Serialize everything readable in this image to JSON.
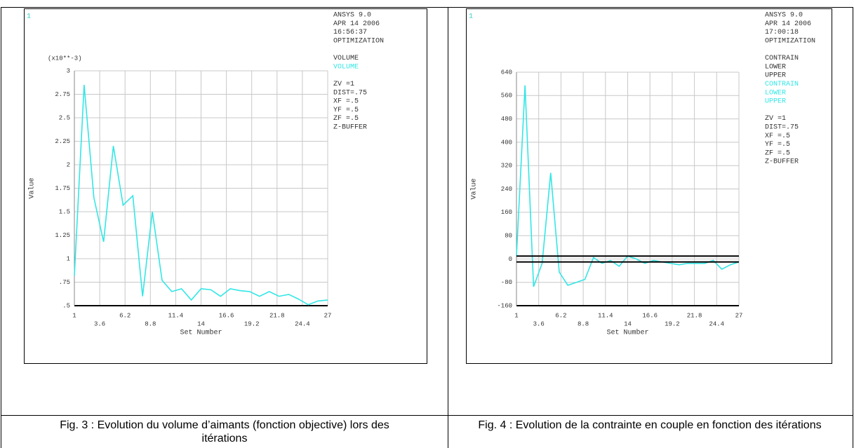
{
  "chart_data": [
    {
      "type": "line",
      "corner": "1",
      "axis_note": "(x10**-3)",
      "xlabel": "Set Number",
      "ylabel": "Value",
      "info": [
        "ANSYS 9.0",
        "APR 14 2006",
        "16:56:37",
        "OPTIMIZATION"
      ],
      "legend_header": [
        "VOLUME"
      ],
      "view": [
        "ZV =1",
        "DIST=.75",
        "XF =.5",
        "YF =.5",
        "ZF =.5",
        "Z-BUFFER"
      ],
      "xlim": [
        1,
        27
      ],
      "xticks": [
        1,
        3.6,
        6.2,
        8.8,
        11.4,
        14,
        16.6,
        19.2,
        21.8,
        24.4,
        27
      ],
      "ylim": [
        0.5,
        3
      ],
      "yticks": [
        {
          "value": 0.5,
          "label": ".5"
        },
        {
          "value": 0.75,
          "label": ".75"
        },
        1,
        1.25,
        1.5,
        1.75,
        2,
        2.25,
        2.5,
        2.75,
        3
      ],
      "grid": true,
      "series": [
        {
          "name": "VOLUME",
          "color": "#33e6e6",
          "x": [
            1,
            2,
            3,
            4,
            5,
            6,
            7,
            8,
            9,
            10,
            11,
            12,
            13,
            14,
            15,
            16,
            17,
            18,
            19,
            20,
            21,
            22,
            23,
            24,
            25,
            26,
            27
          ],
          "values": [
            0.82,
            2.85,
            1.65,
            1.18,
            2.2,
            1.57,
            1.67,
            0.6,
            1.5,
            0.77,
            0.65,
            0.68,
            0.56,
            0.68,
            0.67,
            0.6,
            0.68,
            0.66,
            0.65,
            0.6,
            0.65,
            0.6,
            0.62,
            0.57,
            0.51,
            0.55,
            0.56
          ]
        }
      ]
    },
    {
      "type": "line",
      "corner": "1",
      "xlabel": "Set Number",
      "ylabel": "Value",
      "info": [
        "ANSYS 9.0",
        "APR 14 2006",
        "17:00:18",
        "OPTIMIZATION"
      ],
      "legend_header": [
        "CONTRAIN",
        "LOWER",
        "UPPER"
      ],
      "view": [
        "ZV =1",
        "DIST=.75",
        "XF =.5",
        "YF =.5",
        "ZF =.5",
        "Z-BUFFER"
      ],
      "xlim": [
        1,
        27
      ],
      "xticks": [
        1,
        3.6,
        6.2,
        8.8,
        11.4,
        14,
        16.6,
        19.2,
        21.8,
        24.4,
        27
      ],
      "ylim": [
        -160,
        640
      ],
      "yticks": [
        -160,
        -80,
        0,
        80,
        160,
        240,
        320,
        400,
        480,
        560,
        640
      ],
      "grid": true,
      "series": [
        {
          "name": "CONTRAIN",
          "color": "#33e6e6",
          "x": [
            1,
            2,
            3,
            4,
            5,
            6,
            7,
            8,
            9,
            10,
            11,
            12,
            13,
            14,
            15,
            16,
            17,
            18,
            19,
            20,
            21,
            22,
            23,
            24,
            25,
            26,
            27
          ],
          "values": [
            10,
            595,
            -95,
            -15,
            295,
            -45,
            -90,
            -80,
            -70,
            5,
            -15,
            -5,
            -25,
            10,
            0,
            -15,
            -5,
            -10,
            -15,
            -20,
            -15,
            -15,
            -15,
            -5,
            -35,
            -20,
            -10
          ]
        },
        {
          "name": "LOWER",
          "color": "#000000",
          "x": [
            1,
            27
          ],
          "values": [
            -10,
            -10
          ]
        },
        {
          "name": "UPPER",
          "color": "#000000",
          "x": [
            1,
            27
          ],
          "values": [
            10,
            10
          ]
        }
      ]
    }
  ],
  "captions": [
    "Fig. 3 : Evolution du volume d’aimants (fonction objective) lors des itérations",
    "Fig. 4 : Evolution de la contrainte en couple en fonction des itérations"
  ]
}
